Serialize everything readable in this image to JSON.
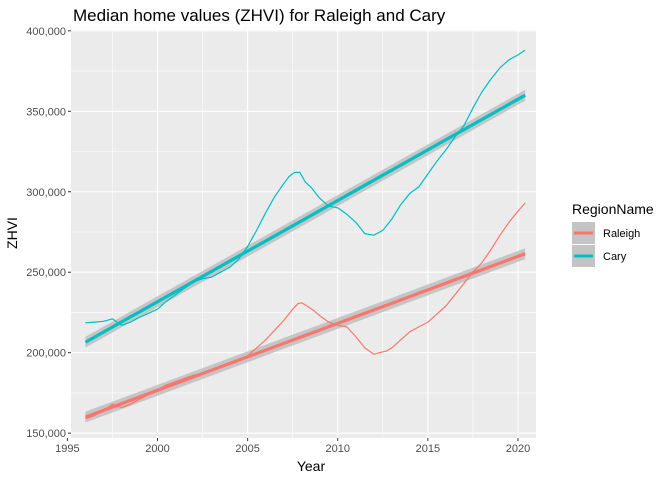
{
  "chart_data": {
    "type": "line",
    "title": "Median home values (ZHVI) for Raleigh and Cary",
    "xlabel": "Year",
    "ylabel": "ZHVI",
    "xlim": [
      1995.2,
      2021.0
    ],
    "ylim": [
      147000,
      400500
    ],
    "x_ticks": [
      1995,
      2000,
      2005,
      2010,
      2015,
      2020
    ],
    "x_tick_labels": [
      "1995",
      "2000",
      "2005",
      "2010",
      "2015",
      "2020"
    ],
    "y_ticks": [
      150000,
      200000,
      250000,
      300000,
      350000,
      400000
    ],
    "y_tick_labels": [
      "150,000",
      "200,000",
      "250,000",
      "300,000",
      "350,000",
      "400,000"
    ],
    "grid": true,
    "panel_background": "#ebebeb",
    "legend": {
      "title": "RegionName",
      "position": "right",
      "entries": [
        "Raleigh",
        "Cary"
      ]
    },
    "series": [
      {
        "name": "Raleigh",
        "color": "#f8766d",
        "x": [
          1996.0,
          1996.5,
          1997.0,
          1997.5,
          1998.0,
          1998.5,
          1999.0,
          1999.5,
          2000.0,
          2000.5,
          2001.0,
          2001.5,
          2002.0,
          2002.5,
          2003.0,
          2003.5,
          2004.0,
          2004.5,
          2005.0,
          2005.5,
          2006.0,
          2006.5,
          2007.0,
          2007.5,
          2007.8,
          2008.0,
          2008.3,
          2008.7,
          2009.0,
          2009.5,
          2010.0,
          2010.5,
          2011.0,
          2011.5,
          2012.0,
          2012.3,
          2012.7,
          2013.0,
          2013.5,
          2014.0,
          2014.5,
          2015.0,
          2015.5,
          2016.0,
          2016.5,
          2017.0,
          2017.5,
          2018.0,
          2018.5,
          2019.0,
          2019.5,
          2020.0,
          2020.4
        ],
        "y": [
          159000,
          161000,
          164000,
          168000,
          166000,
          168000,
          171000,
          174000,
          177000,
          180000,
          182000,
          184000,
          186000,
          187000,
          189000,
          191000,
          193000,
          195000,
          198000,
          203000,
          208000,
          214000,
          220000,
          227000,
          230500,
          231000,
          229000,
          226000,
          223000,
          219000,
          217000,
          216000,
          210000,
          203000,
          199000,
          200000,
          201000,
          203000,
          208000,
          213000,
          216000,
          219000,
          224000,
          229000,
          236000,
          243000,
          250000,
          256000,
          264000,
          273000,
          281000,
          288000,
          293000
        ]
      },
      {
        "name": "Cary",
        "color": "#00bfc4",
        "x": [
          1996.0,
          1996.5,
          1997.0,
          1997.5,
          1998.0,
          1998.5,
          1999.0,
          1999.5,
          2000.0,
          2000.5,
          2001.0,
          2001.5,
          2002.0,
          2002.5,
          2003.0,
          2003.5,
          2004.0,
          2004.5,
          2005.0,
          2005.5,
          2006.0,
          2006.5,
          2007.0,
          2007.3,
          2007.6,
          2007.9,
          2008.2,
          2008.5,
          2009.0,
          2009.5,
          2010.0,
          2010.5,
          2011.0,
          2011.5,
          2012.0,
          2012.5,
          2013.0,
          2013.5,
          2014.0,
          2014.5,
          2015.0,
          2015.5,
          2016.0,
          2016.5,
          2017.0,
          2017.5,
          2018.0,
          2018.5,
          2019.0,
          2019.5,
          2020.0,
          2020.4
        ],
        "y": [
          218500,
          219000,
          219500,
          221000,
          217000,
          219000,
          222000,
          224500,
          227000,
          232000,
          236000,
          240000,
          244000,
          246000,
          247000,
          250000,
          253000,
          258000,
          266000,
          276000,
          287000,
          297000,
          305000,
          309500,
          312000,
          312000,
          306000,
          303000,
          296000,
          291000,
          290000,
          286000,
          281000,
          274000,
          273000,
          276000,
          283000,
          292000,
          299000,
          303000,
          311000,
          319000,
          326000,
          334000,
          341000,
          352000,
          362000,
          370000,
          377000,
          382000,
          385000,
          388000
        ]
      }
    ],
    "smooth": [
      {
        "name": "Raleigh",
        "method": "lm",
        "color": "#f8766d",
        "ribbon_color": "#bebebe",
        "x": [
          1996.0,
          2020.4
        ],
        "y": [
          160000,
          261500
        ],
        "se": 2600
      },
      {
        "name": "Cary",
        "method": "lm",
        "color": "#00bfc4",
        "ribbon_color": "#bebebe",
        "x": [
          1996.0,
          2020.4
        ],
        "y": [
          206500,
          360000
        ],
        "se": 2600
      }
    ]
  }
}
